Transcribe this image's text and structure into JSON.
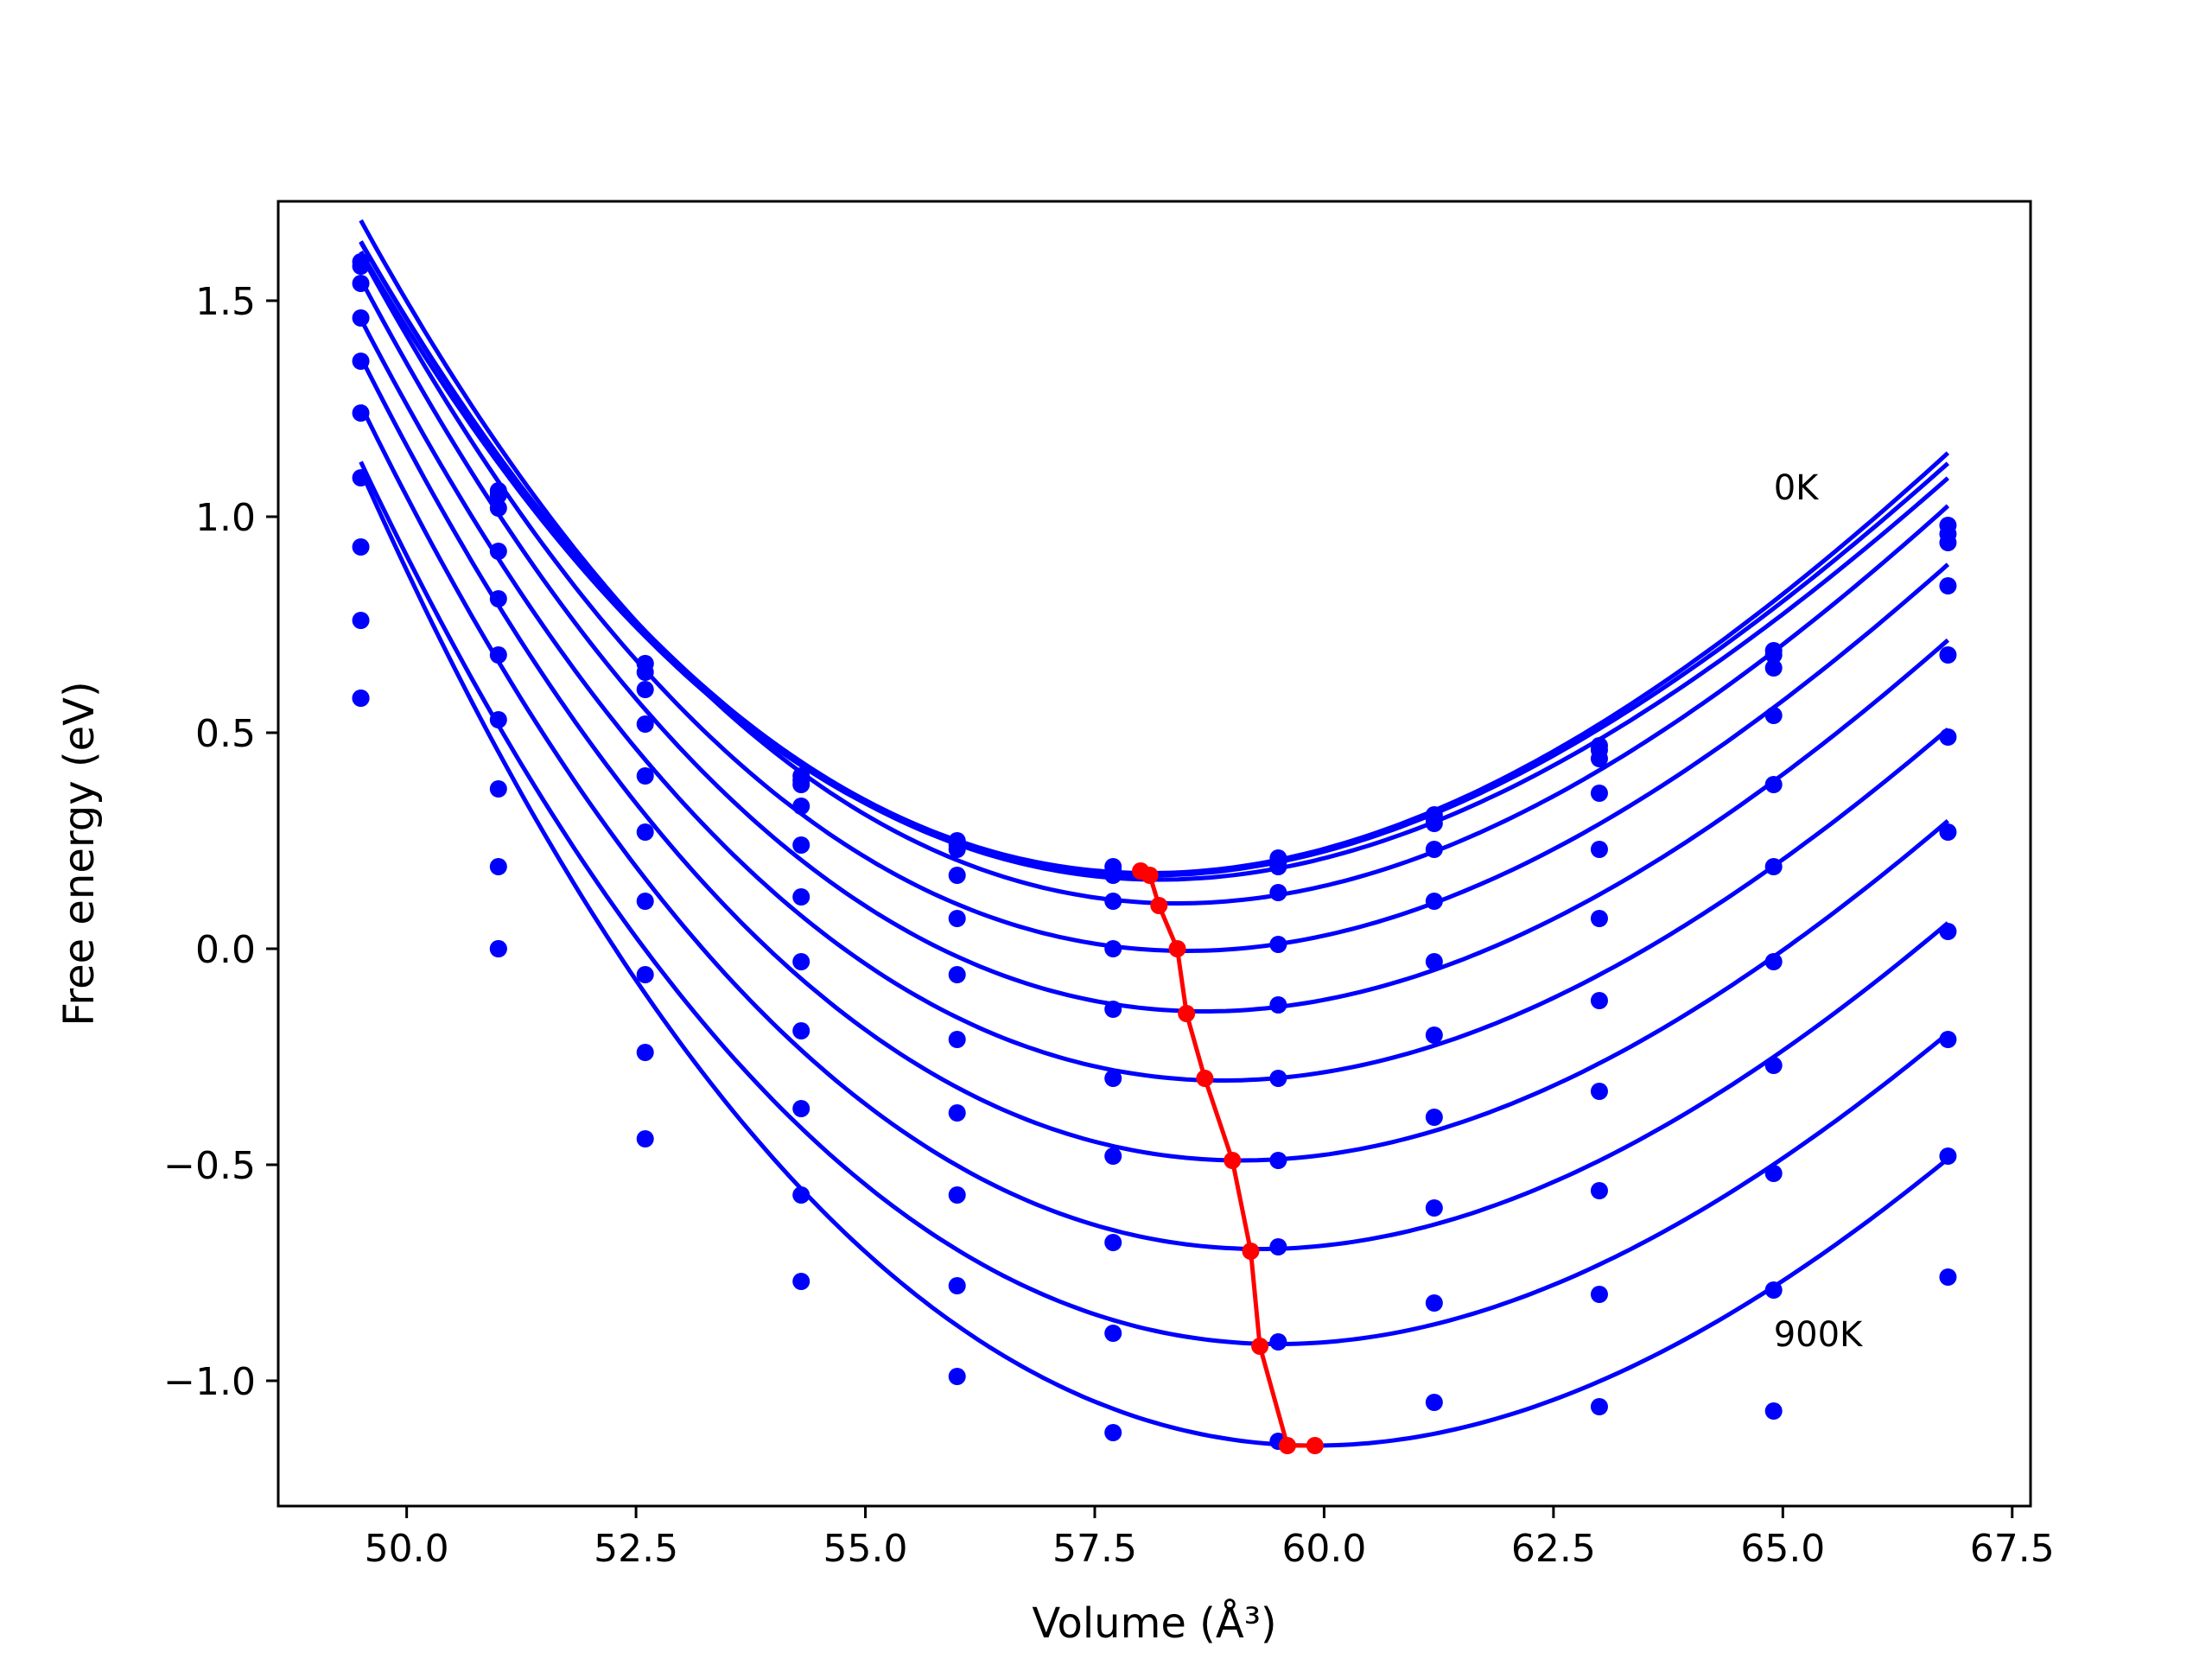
{
  "chart_data": {
    "type": "line",
    "xlabel": "Volume (Å³)",
    "ylabel": "Free energy (eV)",
    "xlim": [
      48.6,
      67.7
    ],
    "ylim": [
      -1.29,
      1.73
    ],
    "xticks": [
      50.0,
      52.5,
      55.0,
      57.5,
      60.0,
      62.5,
      65.0,
      67.5
    ],
    "yticks": [
      -1.0,
      -0.5,
      0.0,
      0.5,
      1.0,
      1.5
    ],
    "grid": false,
    "annotations": [
      {
        "text": "0K",
        "x": 64.9,
        "y": 1.04
      },
      {
        "text": "900K",
        "x": 64.9,
        "y": -0.92
      }
    ],
    "colors": {
      "curves": "#0000ff",
      "minimum_path": "#ff0000"
    },
    "volumes": [
      49.5,
      51.0,
      52.6,
      54.3,
      56.0,
      57.7,
      59.5,
      61.2,
      63.0,
      64.9,
      66.8
    ],
    "series": [
      {
        "points": [
          1.59,
          1.06,
          0.66,
          0.4,
          0.25,
          0.19,
          0.21,
          0.31,
          0.47,
          0.69,
          0.98
        ],
        "curve": {
          "vmin": 58.1,
          "fmin": 0.175,
          "a": 0.01633,
          "b": 0.0004
        }
      },
      {
        "points": [
          1.58,
          1.05,
          0.66,
          0.39,
          0.24,
          0.18,
          0.2,
          0.3,
          0.46,
          0.68,
          0.96
        ],
        "curve": {
          "vmin": 58.1,
          "fmin": 0.17,
          "a": 0.01608,
          "b": 0.0004
        }
      },
      {
        "points": [
          1.54,
          1.02,
          0.64,
          0.38,
          0.23,
          0.17,
          0.19,
          0.29,
          0.44,
          0.65,
          0.94
        ],
        "curve": {
          "vmin": 58.2,
          "fmin": 0.16,
          "a": 0.01601,
          "b": 0.0004
        }
      },
      {
        "points": [
          1.46,
          0.92,
          0.6,
          0.33,
          0.17,
          0.11,
          0.13,
          0.23,
          0.36,
          0.54,
          0.84
        ],
        "curve": {
          "vmin": 58.4,
          "fmin": 0.105,
          "a": 0.0164,
          "b": 0.0004
        }
      },
      {
        "points": [
          1.36,
          0.81,
          0.52,
          0.24,
          0.07,
          0.0,
          0.01,
          0.11,
          0.23,
          0.38,
          0.68
        ],
        "curve": {
          "vmin": 58.5,
          "fmin": -0.005,
          "a": 0.01631,
          "b": 0.0004
        }
      },
      {
        "points": [
          1.24,
          0.68,
          0.4,
          0.12,
          -0.06,
          -0.14,
          -0.13,
          -0.03,
          0.07,
          0.19,
          0.49
        ],
        "curve": {
          "vmin": 58.7,
          "fmin": -0.145,
          "a": 0.01634,
          "b": 0.0004
        }
      },
      {
        "points": [
          1.09,
          0.53,
          0.27,
          -0.03,
          -0.21,
          -0.3,
          -0.3,
          -0.2,
          -0.12,
          -0.03,
          0.27
        ],
        "curve": {
          "vmin": 58.9,
          "fmin": -0.305,
          "a": 0.01619,
          "b": 0.0004
        }
      },
      {
        "points": [
          0.93,
          0.37,
          0.11,
          -0.19,
          -0.38,
          -0.48,
          -0.49,
          -0.39,
          -0.33,
          -0.27,
          0.04
        ],
        "curve": {
          "vmin": 59.1,
          "fmin": -0.49,
          "a": 0.01634,
          "b": 0.0004
        }
      },
      {
        "points": [
          0.76,
          0.19,
          -0.06,
          -0.37,
          -0.57,
          -0.68,
          -0.69,
          -0.6,
          -0.56,
          -0.52,
          -0.21
        ],
        "curve": {
          "vmin": 59.3,
          "fmin": -0.695,
          "a": 0.01642,
          "b": 0.0004
        }
      },
      {
        "points": [
          0.58,
          0.0,
          -0.24,
          -0.57,
          -0.78,
          -0.89,
          -0.91,
          -0.82,
          -0.8,
          -0.79,
          -0.48
        ],
        "curve": {
          "vmin": 59.5,
          "fmin": -0.915,
          "a": 0.01642,
          "b": 0.0004
        }
      },
      {
        "points": [
          0.58,
          0.0,
          -0.44,
          -0.77,
          -0.99,
          -1.12,
          -1.14,
          -1.05,
          -1.06,
          -1.07,
          -0.76
        ],
        "curve": {
          "vmin": 59.9,
          "fmin": -1.15,
          "a": 0.01671,
          "b": 0.0004
        }
      }
    ],
    "minimum_path": {
      "x": [
        58.0,
        58.1,
        58.2,
        58.4,
        58.5,
        58.7,
        59.0,
        59.2,
        59.3,
        59.6,
        59.9
      ],
      "y": [
        0.18,
        0.17,
        0.1,
        0.0,
        -0.15,
        -0.3,
        -0.49,
        -0.7,
        -0.92,
        -1.15,
        -1.15
      ]
    }
  }
}
